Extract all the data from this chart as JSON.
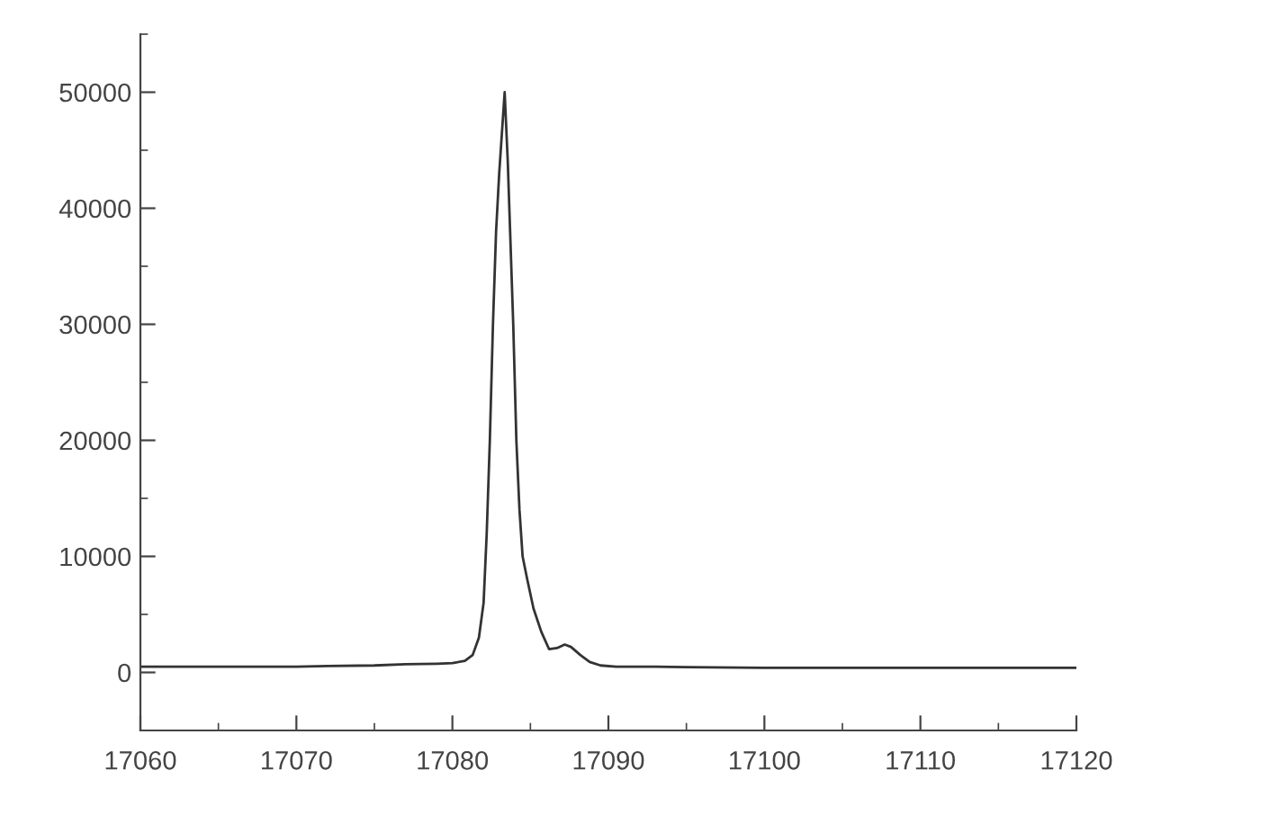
{
  "chart_data": {
    "type": "line",
    "color": "#333333",
    "x": [
      17060,
      17065,
      17070,
      17072,
      17075,
      17077,
      17079,
      17080,
      17080.8,
      17081.3,
      17081.7,
      17082.0,
      17082.2,
      17082.4,
      17082.6,
      17082.8,
      17083.0,
      17083.2,
      17083.35,
      17083.45,
      17083.55,
      17083.7,
      17083.9,
      17084.1,
      17084.3,
      17084.5,
      17084.8,
      17085.2,
      17085.7,
      17086.2,
      17086.7,
      17087.2,
      17087.6,
      17088.2,
      17088.8,
      17089.5,
      17090.5,
      17093,
      17095,
      17100,
      17110,
      17120
    ],
    "values": [
      500,
      500,
      500,
      550,
      600,
      700,
      750,
      800,
      1000,
      1500,
      3000,
      6000,
      12000,
      20000,
      30000,
      38000,
      43000,
      47000,
      50000,
      47000,
      44000,
      38000,
      30000,
      20000,
      14000,
      10000,
      8000,
      5500,
      3500,
      2000,
      2100,
      2400,
      2200,
      1500,
      900,
      600,
      500,
      500,
      450,
      400,
      400,
      400
    ],
    "xlim": [
      17060,
      17120
    ],
    "xticks": [
      17060,
      17070,
      17080,
      17090,
      17100,
      17110,
      17120
    ],
    "ylim": [
      -5000,
      55000
    ],
    "yticks": [
      0,
      10000,
      20000,
      30000,
      40000,
      50000
    ],
    "grid": false,
    "marker": "none",
    "line_style": "solid"
  }
}
